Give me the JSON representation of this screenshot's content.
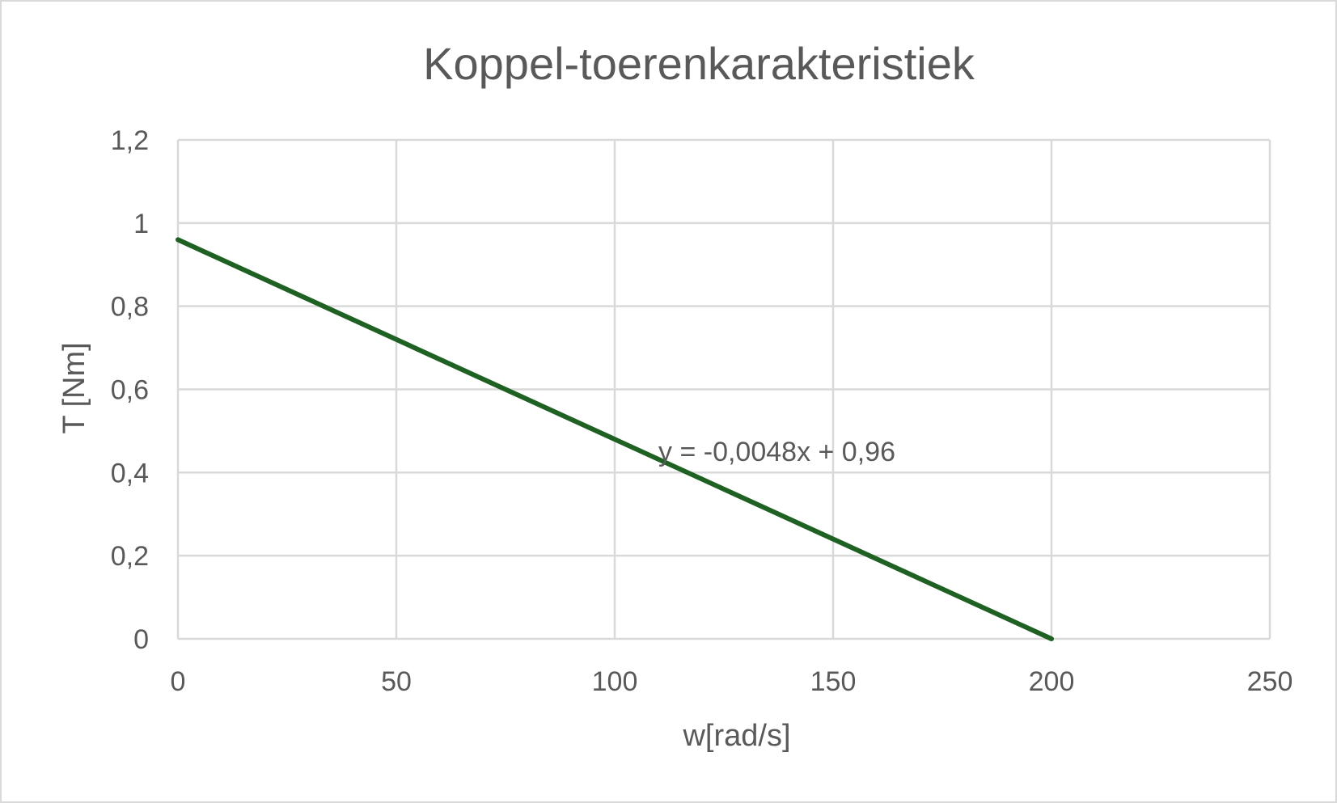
{
  "chart_data": {
    "type": "line",
    "title": "Koppel-toerenkarakteristiek",
    "xlabel": "w[rad/s]",
    "ylabel": "T [Nm]",
    "xlim": [
      0,
      250
    ],
    "ylim": [
      0,
      1.2
    ],
    "x_ticks": [
      "0",
      "50",
      "100",
      "150",
      "200",
      "250"
    ],
    "y_ticks": [
      "0",
      "0,2",
      "0,4",
      "0,6",
      "0,8",
      "1",
      "1,2"
    ],
    "x_tick_values": [
      0,
      50,
      100,
      150,
      200,
      250
    ],
    "y_tick_values": [
      0,
      0.2,
      0.4,
      0.6,
      0.8,
      1.0,
      1.2
    ],
    "grid": true,
    "legend": "none",
    "series": [
      {
        "x": [
          0,
          200
        ],
        "y": [
          0.96,
          0
        ],
        "color": "#1e6123"
      }
    ],
    "annotations": [
      {
        "text": "y = -0,0048x + 0,96",
        "x": 110,
        "y": 0.5
      }
    ],
    "colors": {
      "gridline": "#d9d9d9",
      "text": "#595959",
      "border": "#d9d9d9"
    }
  }
}
